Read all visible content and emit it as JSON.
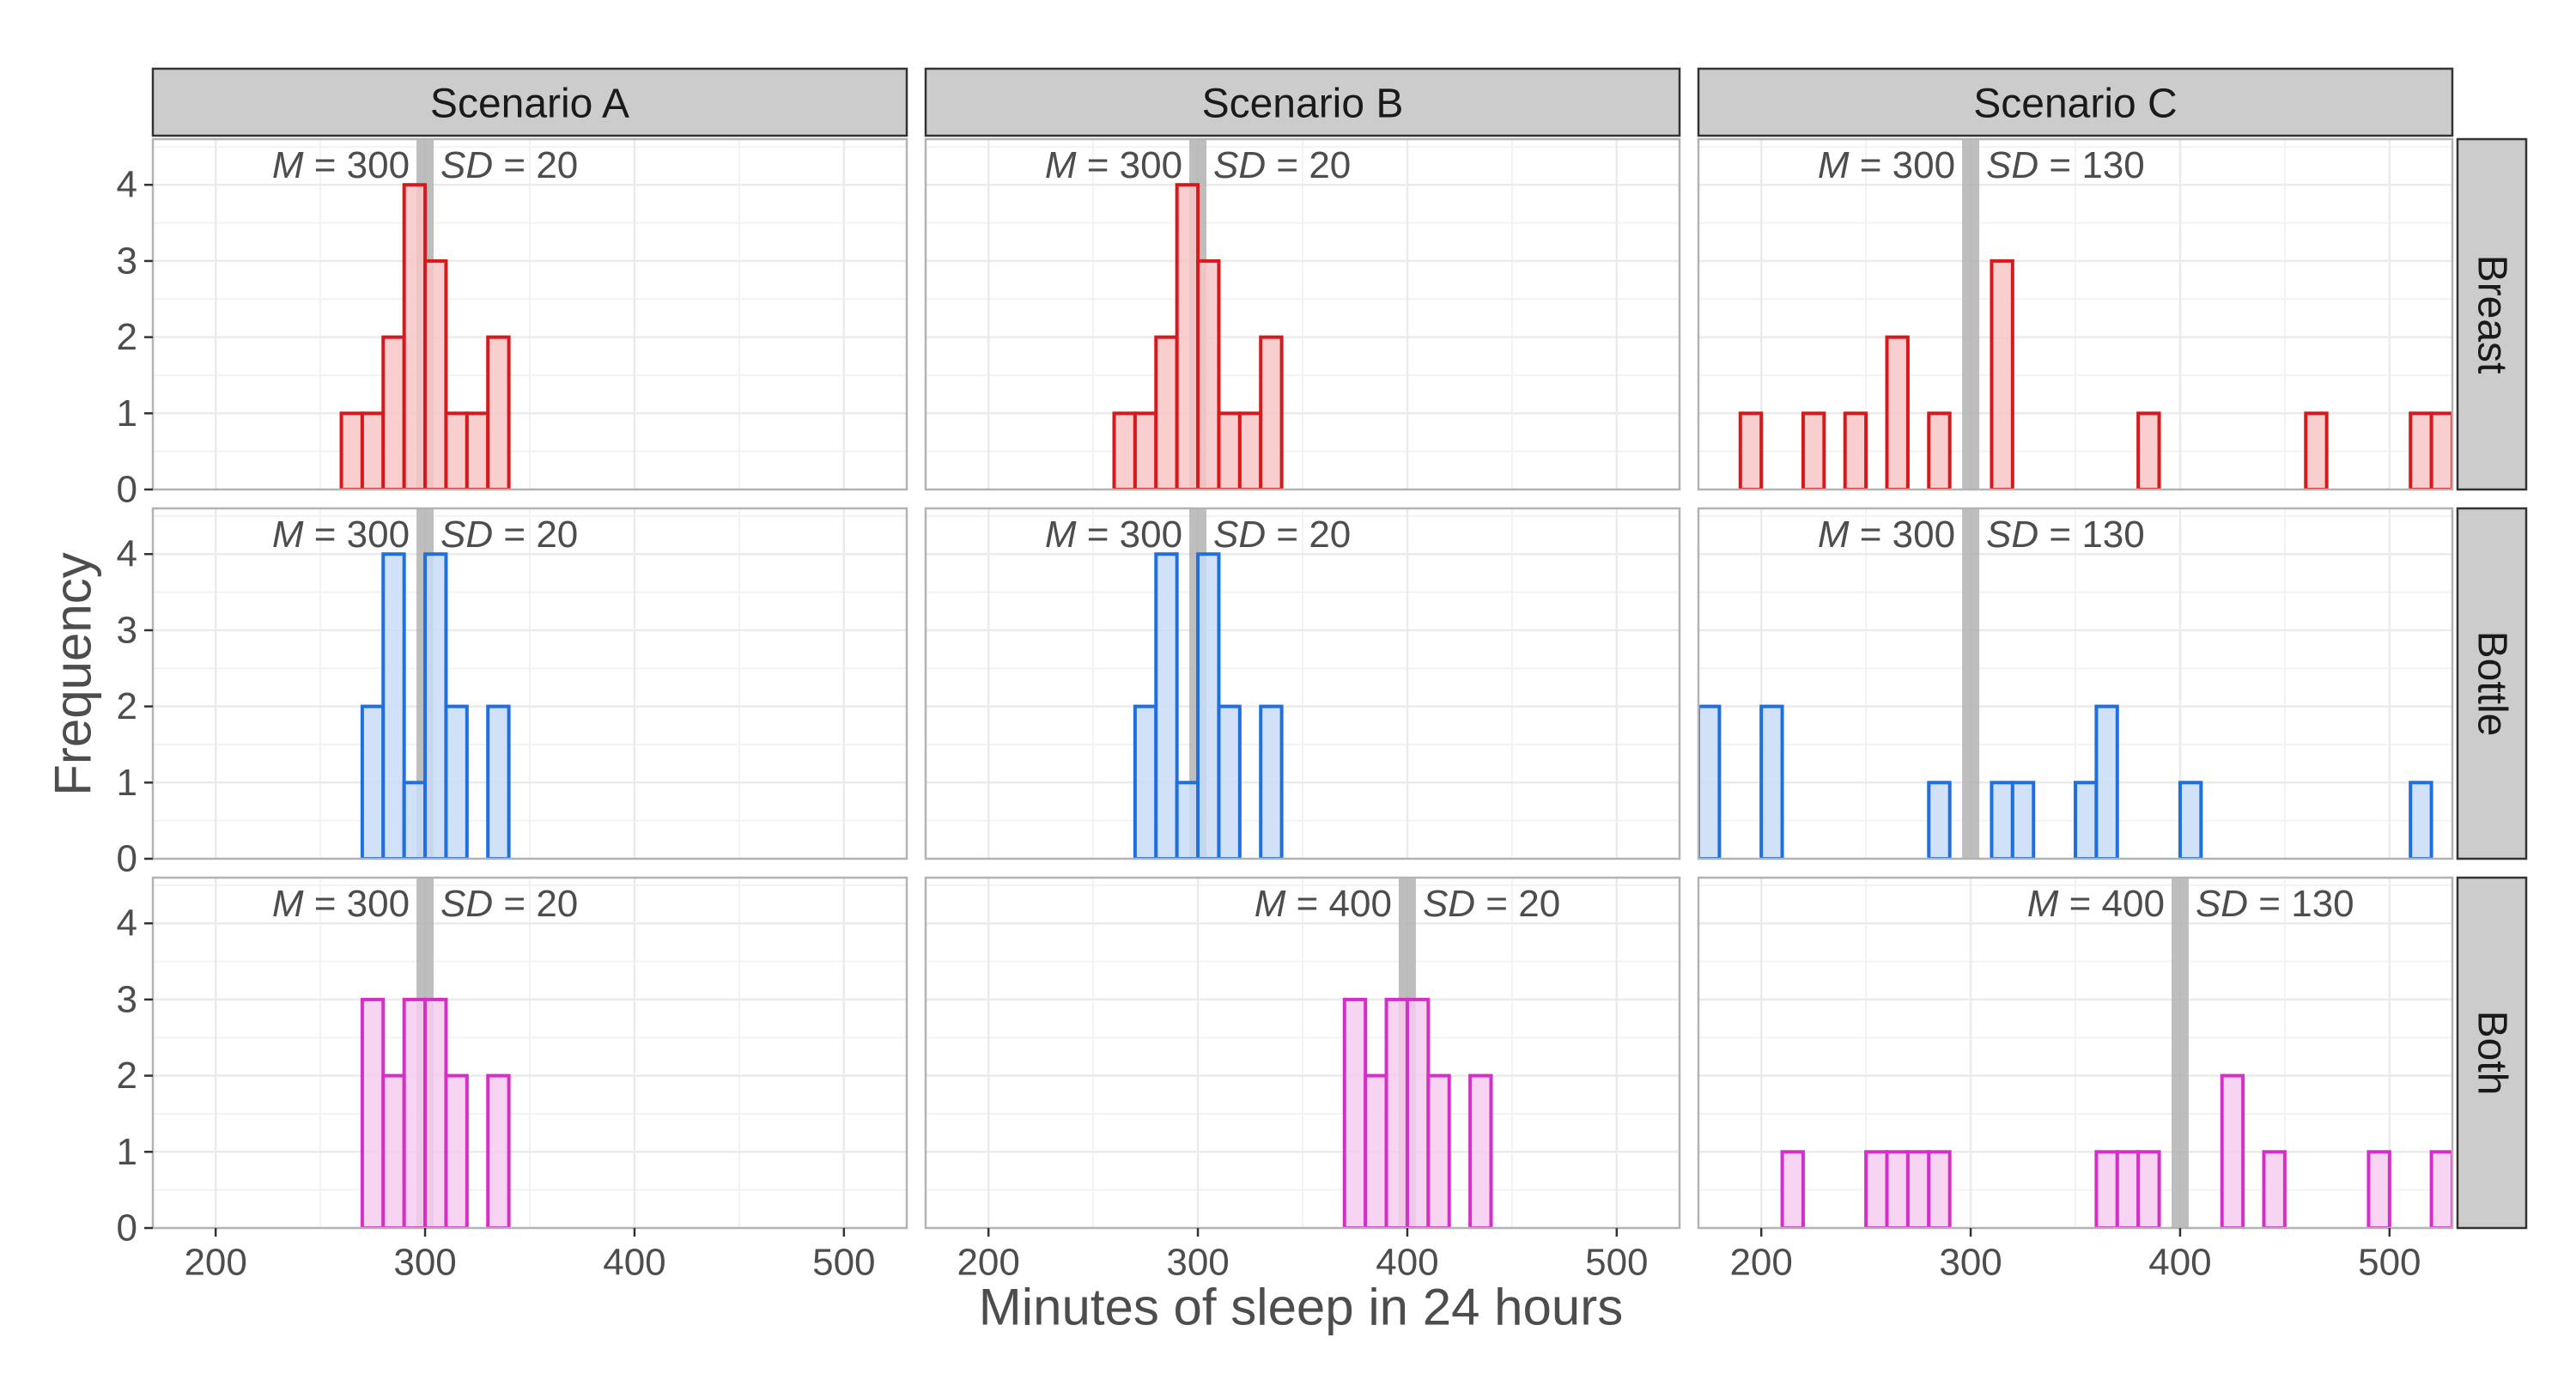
{
  "chart_data": {
    "type": "histogram",
    "xlabel": "Minutes of sleep in 24 hours",
    "ylabel": "Frequency",
    "xlim": [
      170,
      530
    ],
    "ylim": [
      0,
      4.6
    ],
    "xticks": [
      200,
      300,
      400,
      500
    ],
    "xtick_labels": [
      "200",
      "300",
      "400",
      "500"
    ],
    "yticks": [
      0,
      1,
      2,
      3,
      4
    ],
    "ytick_labels": [
      "0",
      "1",
      "2",
      "3",
      "4"
    ],
    "bin_width": 10,
    "grid": true,
    "legend": "none",
    "columns": [
      "Scenario A",
      "Scenario B",
      "Scenario C"
    ],
    "rows": [
      "Breast",
      "Bottle",
      "Both"
    ],
    "annotation_labels": {
      "mean": "M",
      "sd": "SD",
      "equals": "="
    },
    "colors": {
      "Breast": {
        "stroke": "#d7191c",
        "fill": "#f7c6c7"
      },
      "Bottle": {
        "stroke": "#1f6fe0",
        "fill": "#c9ddf7"
      },
      "Both": {
        "stroke": "#d62fc7",
        "fill": "#f6cdf0"
      },
      "mean_line": "#b3b3b3",
      "strip_bg": "#cccccc",
      "grid": "#ebebeb",
      "panel_border": "#b3b3b3"
    },
    "panels": [
      {
        "column": "Scenario A",
        "row": "Breast",
        "mean": 300,
        "mean_label": "300",
        "sd_label": "20",
        "bins": [
          [
            260,
            1
          ],
          [
            270,
            1
          ],
          [
            280,
            2
          ],
          [
            290,
            4
          ],
          [
            300,
            3
          ],
          [
            310,
            1
          ],
          [
            320,
            1
          ],
          [
            330,
            2
          ]
        ]
      },
      {
        "column": "Scenario B",
        "row": "Breast",
        "mean": 300,
        "mean_label": "300",
        "sd_label": "20",
        "bins": [
          [
            260,
            1
          ],
          [
            270,
            1
          ],
          [
            280,
            2
          ],
          [
            290,
            4
          ],
          [
            300,
            3
          ],
          [
            310,
            1
          ],
          [
            320,
            1
          ],
          [
            330,
            2
          ]
        ]
      },
      {
        "column": "Scenario C",
        "row": "Breast",
        "mean": 300,
        "mean_label": "300",
        "sd_label": "130",
        "bins": [
          [
            190,
            1
          ],
          [
            220,
            1
          ],
          [
            240,
            1
          ],
          [
            260,
            2
          ],
          [
            280,
            1
          ],
          [
            310,
            3
          ],
          [
            380,
            1
          ],
          [
            460,
            1
          ],
          [
            510,
            1
          ],
          [
            520,
            1
          ]
        ]
      },
      {
        "column": "Scenario A",
        "row": "Bottle",
        "mean": 300,
        "mean_label": "300",
        "sd_label": "20",
        "bins": [
          [
            270,
            2
          ],
          [
            280,
            4
          ],
          [
            290,
            1
          ],
          [
            300,
            4
          ],
          [
            310,
            2
          ],
          [
            330,
            2
          ]
        ]
      },
      {
        "column": "Scenario B",
        "row": "Bottle",
        "mean": 300,
        "mean_label": "300",
        "sd_label": "20",
        "bins": [
          [
            270,
            2
          ],
          [
            280,
            4
          ],
          [
            290,
            1
          ],
          [
            300,
            4
          ],
          [
            310,
            2
          ],
          [
            330,
            2
          ]
        ]
      },
      {
        "column": "Scenario C",
        "row": "Bottle",
        "mean": 300,
        "mean_label": "300",
        "sd_label": "130",
        "bins": [
          [
            170,
            2
          ],
          [
            200,
            2
          ],
          [
            280,
            1
          ],
          [
            310,
            1
          ],
          [
            320,
            1
          ],
          [
            350,
            1
          ],
          [
            360,
            2
          ],
          [
            400,
            1
          ],
          [
            510,
            1
          ]
        ]
      },
      {
        "column": "Scenario A",
        "row": "Both",
        "mean": 300,
        "mean_label": "300",
        "sd_label": "20",
        "bins": [
          [
            270,
            3
          ],
          [
            280,
            2
          ],
          [
            290,
            3
          ],
          [
            300,
            3
          ],
          [
            310,
            2
          ],
          [
            330,
            2
          ]
        ]
      },
      {
        "column": "Scenario B",
        "row": "Both",
        "mean": 400,
        "mean_label": "400",
        "sd_label": "20",
        "bins": [
          [
            370,
            3
          ],
          [
            380,
            2
          ],
          [
            390,
            3
          ],
          [
            400,
            3
          ],
          [
            410,
            2
          ],
          [
            430,
            2
          ]
        ]
      },
      {
        "column": "Scenario C",
        "row": "Both",
        "mean": 400,
        "mean_label": "400",
        "sd_label": "130",
        "bins": [
          [
            210,
            1
          ],
          [
            250,
            1
          ],
          [
            260,
            1
          ],
          [
            270,
            1
          ],
          [
            280,
            1
          ],
          [
            360,
            1
          ],
          [
            370,
            1
          ],
          [
            380,
            1
          ],
          [
            420,
            2
          ],
          [
            440,
            1
          ],
          [
            490,
            1
          ],
          [
            520,
            1
          ]
        ]
      }
    ]
  }
}
